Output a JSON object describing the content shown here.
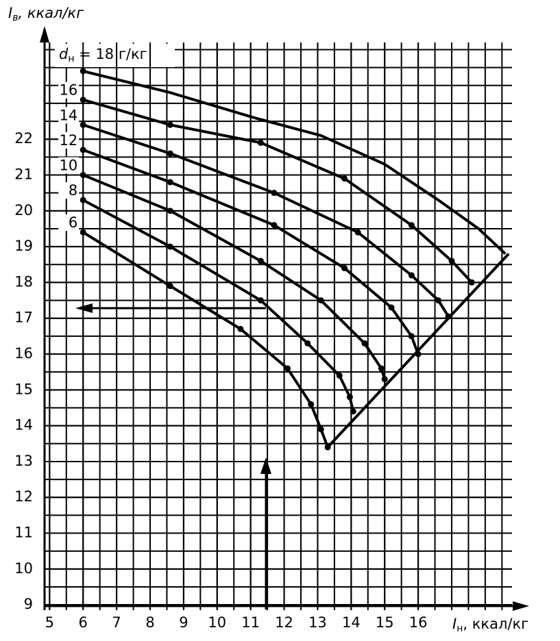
{
  "chart_data": {
    "type": "line",
    "y_label": "I",
    "y_label_sub": "в",
    "y_label_unit": ", ккал/кг",
    "x_label": "I",
    "x_label_sub": "н",
    "x_label_unit": ", ккал/кг",
    "annotation": "d",
    "annotation_sub": "н",
    "annotation_text": " = 18 г/кг",
    "xlim": [
      4.85,
      18.8
    ],
    "ylim": [
      8.85,
      24.7
    ],
    "xticks": [
      5,
      6,
      7,
      8,
      9,
      10,
      11,
      12,
      13,
      14,
      15,
      16
    ],
    "yticks": [
      9,
      10,
      11,
      12,
      13,
      14,
      15,
      16,
      17,
      18,
      19,
      20,
      21,
      22
    ],
    "grid": true,
    "grid_step": 0.5,
    "color": "#000000",
    "series": [
      {
        "x": [
          6,
          8.6,
          11.1,
          13.1,
          15.0,
          16.6,
          17.8,
          18.6
        ],
        "values": [
          23.9,
          23.3,
          22.6,
          22.1,
          21.3,
          20.3,
          19.5,
          18.8
        ]
      },
      {
        "name": "16",
        "x": [
          6,
          8.6,
          11.3,
          13.8,
          15.8,
          17.0,
          17.6
        ],
        "values": [
          23.1,
          22.4,
          21.9,
          20.9,
          19.6,
          18.6,
          18.0
        ]
      },
      {
        "name": "14",
        "x": [
          6,
          8.6,
          11.7,
          14.2,
          15.8,
          16.6,
          16.9
        ],
        "values": [
          22.4,
          21.6,
          20.5,
          19.4,
          18.2,
          17.5,
          17.05
        ]
      },
      {
        "name": "12",
        "x": [
          6,
          8.6,
          11.7,
          13.8,
          15.2,
          15.8,
          16.0
        ],
        "values": [
          21.7,
          20.8,
          19.6,
          18.4,
          17.3,
          16.5,
          16.0
        ]
      },
      {
        "name": "10",
        "x": [
          6,
          8.6,
          11.3,
          13.1,
          14.4,
          14.9,
          15.0
        ],
        "values": [
          21.0,
          20.0,
          18.6,
          17.5,
          16.3,
          15.6,
          15.3
        ]
      },
      {
        "name": "8",
        "x": [
          6,
          8.6,
          11.3,
          12.7,
          13.65,
          13.96,
          14.06
        ],
        "values": [
          20.3,
          19.0,
          17.5,
          16.3,
          15.4,
          14.8,
          14.4
        ]
      },
      {
        "name": "6",
        "x": [
          6,
          8.6,
          10.7,
          12.1,
          12.8,
          13.1,
          13.3
        ],
        "values": [
          19.4,
          17.9,
          16.7,
          15.6,
          14.6,
          13.9,
          13.4
        ]
      },
      {
        "x": [
          13.3,
          18.7
        ],
        "values": [
          13.4,
          18.8
        ]
      }
    ]
  }
}
